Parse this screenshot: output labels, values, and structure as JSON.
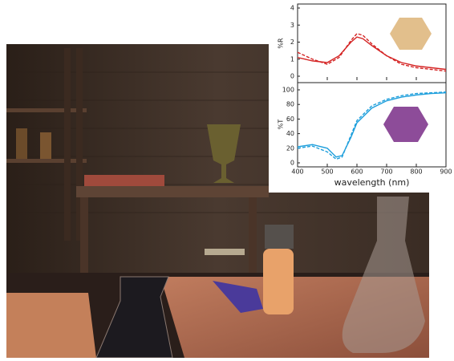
{
  "chart_data": [
    {
      "type": "line",
      "ylabel": "%R",
      "x": [
        400,
        450,
        500,
        540,
        580,
        600,
        620,
        650,
        700,
        750,
        800,
        850,
        900
      ],
      "xlim": [
        400,
        900
      ],
      "ylim": [
        0,
        4
      ],
      "yticks": [
        0,
        1,
        2,
        3,
        4
      ],
      "series": [
        {
          "color": "#d42323",
          "dashed": false,
          "values": [
            1.1,
            0.9,
            0.8,
            1.2,
            2.0,
            2.3,
            2.2,
            1.8,
            1.2,
            0.8,
            0.6,
            0.5,
            0.4
          ]
        },
        {
          "color": "#d42323",
          "dashed": true,
          "values": [
            1.4,
            1.0,
            0.7,
            1.1,
            2.1,
            2.5,
            2.4,
            1.9,
            1.2,
            0.7,
            0.5,
            0.4,
            0.3
          ]
        }
      ]
    },
    {
      "type": "line",
      "ylabel": "%T",
      "xlabel": "wavelength (nm)",
      "x": [
        400,
        450,
        500,
        530,
        550,
        580,
        600,
        650,
        700,
        750,
        800,
        850,
        900
      ],
      "xlim": [
        400,
        900
      ],
      "xticks": [
        400,
        500,
        600,
        700,
        800,
        900
      ],
      "ylim": [
        0,
        100
      ],
      "yticks": [
        0,
        20,
        40,
        60,
        80,
        100
      ],
      "series": [
        {
          "color": "#1e9fdc",
          "dashed": false,
          "values": [
            22,
            25,
            20,
            8,
            10,
            35,
            55,
            75,
            85,
            90,
            93,
            95,
            96
          ]
        },
        {
          "color": "#1e9fdc",
          "dashed": true,
          "values": [
            20,
            23,
            15,
            5,
            8,
            38,
            58,
            78,
            87,
            92,
            95,
            96,
            97
          ]
        }
      ]
    }
  ]
}
